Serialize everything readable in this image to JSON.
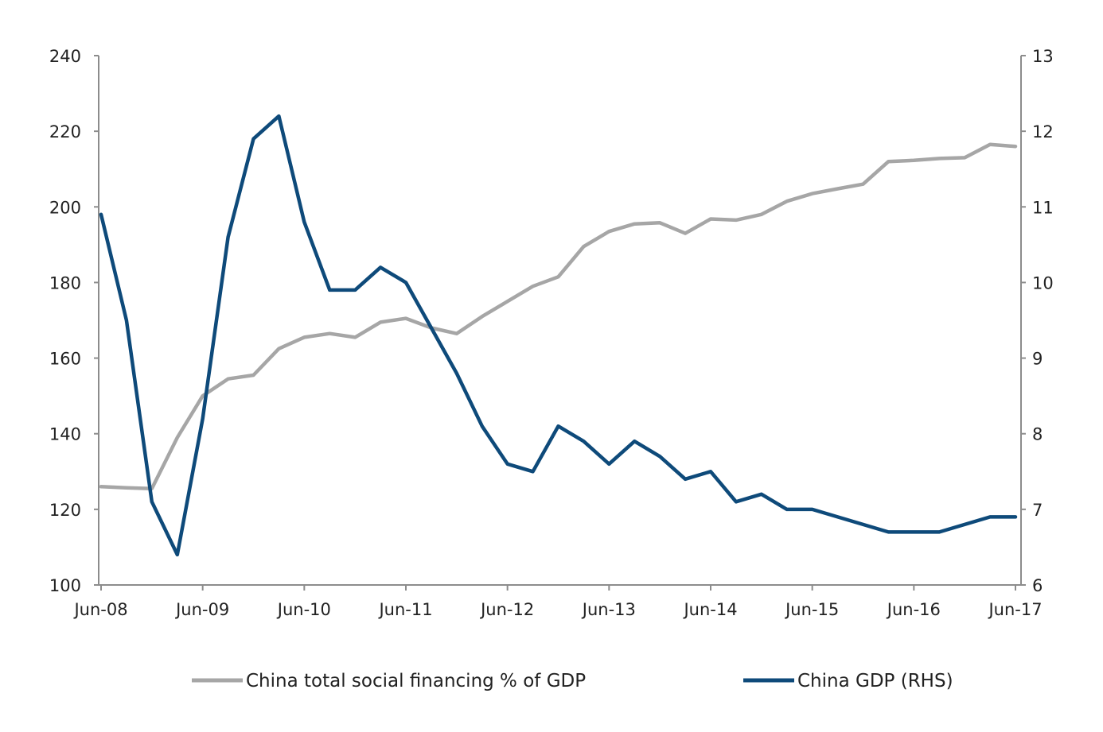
{
  "chart_data": {
    "type": "line",
    "title": "",
    "xlabel": "",
    "ylabel": "",
    "x_ticks": [
      "Jun-08",
      "Jun-09",
      "Jun-10",
      "Jun-11",
      "Jun-12",
      "Jun-13",
      "Jun-14",
      "Jun-15",
      "Jun-16",
      "Jun-17"
    ],
    "y_left": {
      "min": 100,
      "max": 240,
      "step": 20,
      "ticks": [
        "100",
        "120",
        "140",
        "160",
        "180",
        "200",
        "220",
        "240"
      ]
    },
    "y_right": {
      "min": 6,
      "max": 13,
      "step": 1,
      "ticks": [
        "6",
        "7",
        "8",
        "9",
        "10",
        "11",
        "12",
        "13"
      ]
    },
    "grid": false,
    "legend_position": "bottom",
    "x": [
      "2008-06",
      "2008-09",
      "2008-12",
      "2009-03",
      "2009-06",
      "2009-09",
      "2009-12",
      "2010-03",
      "2010-06",
      "2010-09",
      "2010-12",
      "2011-03",
      "2011-06",
      "2011-09",
      "2011-12",
      "2012-03",
      "2012-06",
      "2012-09",
      "2012-12",
      "2013-03",
      "2013-06",
      "2013-09",
      "2013-12",
      "2014-03",
      "2014-06",
      "2014-09",
      "2014-12",
      "2015-03",
      "2015-06",
      "2015-09",
      "2015-12",
      "2016-03",
      "2016-06",
      "2016-09",
      "2016-12",
      "2017-03",
      "2017-06"
    ],
    "series": [
      {
        "name": "China total social financing % of GDP",
        "axis": "left",
        "color": "#a6a6a6",
        "values": [
          126,
          125.7,
          125.5,
          139,
          150,
          154.5,
          155.5,
          162.5,
          165.5,
          166.5,
          165.5,
          169.5,
          170.5,
          168,
          166.5,
          171,
          175,
          179,
          181.5,
          189.5,
          193.5,
          195.5,
          195.8,
          193,
          196.8,
          196.5,
          198,
          201.5,
          203.5,
          204.8,
          206,
          212,
          212.3,
          212.8,
          213,
          216.5,
          216
        ]
      },
      {
        "name": "China GDP  (RHS)",
        "axis": "right",
        "color": "#0e4a7a",
        "values": [
          10.9,
          9.5,
          7.1,
          6.4,
          8.2,
          10.6,
          11.9,
          12.2,
          10.8,
          9.9,
          9.9,
          10.2,
          10.0,
          9.4,
          8.8,
          8.1,
          7.6,
          7.5,
          8.1,
          7.9,
          7.6,
          7.9,
          7.7,
          7.4,
          7.5,
          7.1,
          7.2,
          7.0,
          7.0,
          6.9,
          6.8,
          6.7,
          6.7,
          6.7,
          6.8,
          6.9,
          6.9
        ]
      }
    ]
  }
}
